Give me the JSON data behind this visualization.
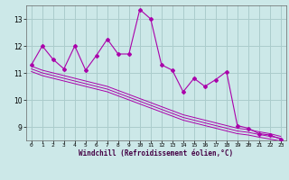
{
  "x": [
    0,
    1,
    2,
    3,
    4,
    5,
    6,
    7,
    8,
    9,
    10,
    11,
    12,
    13,
    14,
    15,
    16,
    17,
    18,
    19,
    20,
    21,
    22,
    23
  ],
  "y_main": [
    11.3,
    12.0,
    11.5,
    11.15,
    12.0,
    11.1,
    11.65,
    12.25,
    11.7,
    11.7,
    13.35,
    13.0,
    11.3,
    11.1,
    10.3,
    10.8,
    10.5,
    10.75,
    11.05,
    9.05,
    8.95,
    8.75,
    8.7,
    8.55
  ],
  "y_trend1": [
    11.25,
    11.1,
    11.0,
    10.9,
    10.8,
    10.7,
    10.6,
    10.5,
    10.35,
    10.2,
    10.05,
    9.9,
    9.75,
    9.6,
    9.45,
    9.35,
    9.25,
    9.15,
    9.05,
    8.95,
    8.9,
    8.82,
    8.75,
    8.65
  ],
  "y_trend2": [
    11.15,
    11.0,
    10.9,
    10.8,
    10.7,
    10.6,
    10.5,
    10.4,
    10.25,
    10.1,
    9.95,
    9.8,
    9.65,
    9.5,
    9.35,
    9.25,
    9.15,
    9.05,
    8.95,
    8.85,
    8.8,
    8.72,
    8.65,
    8.58
  ],
  "y_trend3": [
    11.05,
    10.9,
    10.8,
    10.7,
    10.6,
    10.5,
    10.4,
    10.3,
    10.15,
    10.0,
    9.85,
    9.7,
    9.55,
    9.4,
    9.25,
    9.15,
    9.05,
    8.95,
    8.85,
    8.75,
    8.7,
    8.62,
    8.55,
    8.48
  ],
  "color": "#aa00aa",
  "bg_color": "#cce8e8",
  "grid_color": "#aacccc",
  "xlabel": "Windchill (Refroidissement éolien,°C)",
  "xlim": [
    -0.5,
    23.5
  ],
  "ylim": [
    8.5,
    13.5
  ],
  "yticks": [
    9,
    10,
    11,
    12,
    13
  ],
  "xticks": [
    0,
    1,
    2,
    3,
    4,
    5,
    6,
    7,
    8,
    9,
    10,
    11,
    12,
    13,
    14,
    15,
    16,
    17,
    18,
    19,
    20,
    21,
    22,
    23
  ]
}
